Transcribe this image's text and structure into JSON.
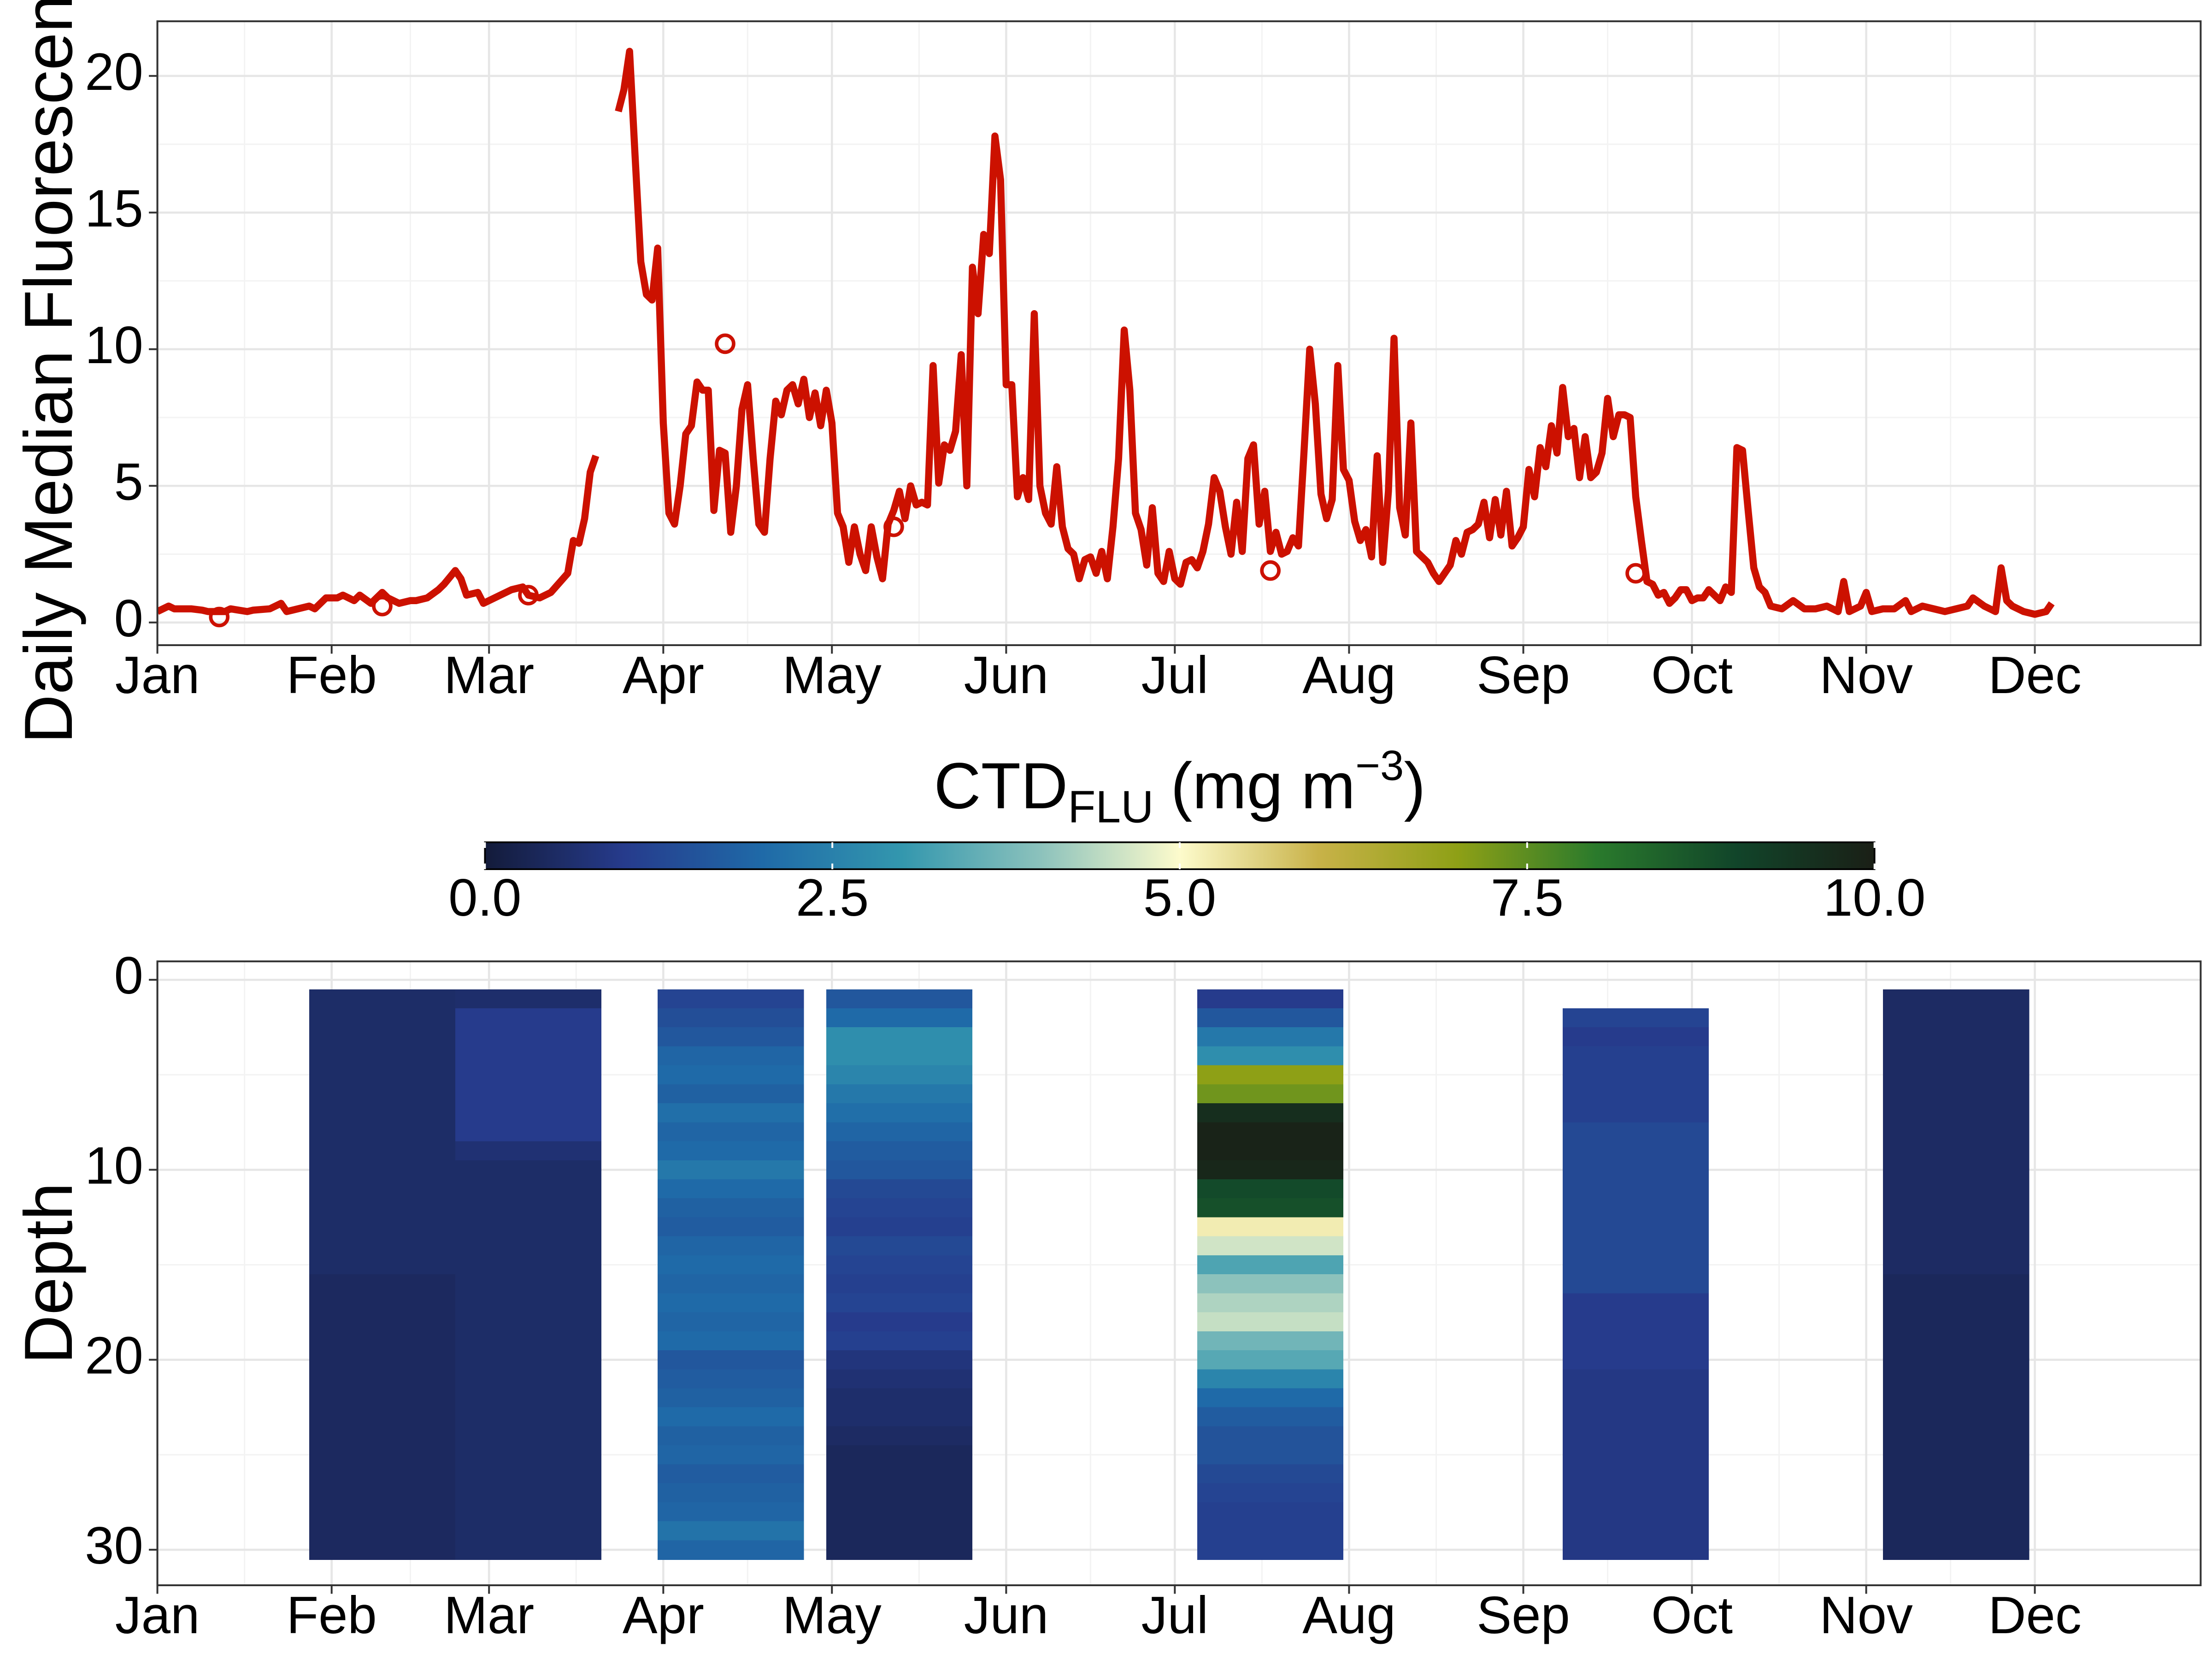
{
  "chart_data": [
    {
      "type": "line",
      "ylabel": "Daily Median Fluorescence",
      "x": [
        1,
        3,
        4,
        7,
        9,
        10,
        13,
        14,
        17,
        18,
        21,
        23,
        24,
        26,
        28,
        29,
        31,
        33,
        34,
        36,
        37,
        39,
        41,
        42,
        44,
        46,
        47,
        49,
        51,
        52,
        54,
        55,
        56,
        58,
        59,
        62,
        64,
        66,
        67,
        69,
        71,
        74,
        75,
        76,
        77,
        78,
        79,
        81,
        83,
        84,
        85,
        86,
        87,
        88,
        89,
        90,
        91,
        92,
        93,
        94,
        95,
        96,
        97,
        98,
        99,
        100,
        101,
        102,
        103,
        104,
        105,
        106,
        107,
        108,
        109,
        110,
        111,
        112,
        113,
        114,
        115,
        116,
        117,
        118,
        119,
        120,
        121,
        122,
        123,
        124,
        125,
        126,
        127,
        128,
        129,
        130,
        131,
        132,
        133,
        134,
        135,
        136,
        137,
        138,
        139,
        140,
        141,
        142,
        143,
        144,
        145,
        146,
        147,
        148,
        149,
        150,
        151,
        152,
        153,
        154,
        155,
        156,
        157,
        158,
        159,
        160,
        161,
        162,
        163,
        164,
        165,
        166,
        167,
        168,
        169,
        170,
        171,
        172,
        173,
        174,
        175,
        176,
        177,
        178,
        179,
        180,
        181,
        182,
        183,
        184,
        185,
        186,
        187,
        188,
        189,
        190,
        191,
        192,
        193,
        194,
        195,
        196,
        197,
        198,
        199,
        200,
        201,
        202,
        203,
        204,
        205,
        206,
        207,
        208,
        209,
        210,
        211,
        212,
        213,
        214,
        215,
        216,
        217,
        218,
        219,
        220,
        221,
        222,
        223,
        224,
        225,
        226,
        227,
        228,
        229,
        230,
        231,
        232,
        233,
        234,
        235,
        236,
        237,
        238,
        239,
        240,
        241,
        242,
        243,
        244,
        245,
        246,
        247,
        248,
        249,
        250,
        251,
        252,
        253,
        254,
        255,
        256,
        257,
        258,
        259,
        260,
        261,
        262,
        263,
        264,
        265,
        266,
        267,
        268,
        269,
        270,
        271,
        272,
        273,
        274,
        275,
        276,
        277,
        279,
        280,
        281,
        282,
        283,
        284,
        285,
        286,
        287,
        288,
        290,
        292,
        294,
        296,
        298,
        300,
        301,
        302,
        304,
        305,
        306,
        308,
        310,
        312,
        313,
        315,
        317,
        319,
        321,
        323,
        324,
        326,
        328,
        329,
        330,
        331,
        333,
        335,
        337,
        338
      ],
      "series": [
        {
          "color": "#cc1100",
          "values": [
            0.4,
            0.6,
            0.5,
            0.5,
            0.45,
            0.4,
            0.4,
            0.5,
            0.4,
            0.45,
            0.5,
            0.7,
            0.4,
            0.5,
            0.6,
            0.5,
            0.9,
            0.9,
            1.0,
            0.8,
            1.0,
            0.7,
            1.1,
            0.9,
            0.7,
            0.8,
            0.8,
            0.9,
            1.2,
            1.4,
            1.9,
            1.6,
            1.0,
            1.1,
            0.7,
            1.0,
            1.2,
            1.3,
            1.0,
            0.9,
            1.1,
            1.8,
            3.0,
            2.9,
            3.8,
            5.5,
            6.1,
            null,
            18.7,
            19.5,
            20.9,
            17,
            13.2,
            12,
            11.8,
            13.7,
            7.3,
            4,
            3.6,
            5,
            6.9,
            7.2,
            8.8,
            8.5,
            8.5,
            4.1,
            6.3,
            6.2,
            3.3,
            5,
            7.8,
            8.7,
            6,
            3.6,
            3.3,
            6,
            8.1,
            7.6,
            8.5,
            8.7,
            8,
            8.9,
            7.5,
            8.4,
            7.2,
            8.5,
            7.3,
            4,
            3.5,
            2.2,
            3.5,
            2.5,
            1.9,
            3.5,
            2.4,
            1.6,
            3.6,
            4.1,
            4.8,
            3.8,
            5,
            4.3,
            4.4,
            4.3,
            9.4,
            5.1,
            6.5,
            6.3,
            7,
            9.8,
            5,
            13,
            11.3,
            14.2,
            13.5,
            17.8,
            16.2,
            8.7,
            8.7,
            4.6,
            5.3,
            4.5,
            11.3,
            5,
            4,
            3.6,
            5.7,
            3.5,
            2.7,
            2.5,
            1.6,
            2.3,
            2.4,
            1.8,
            2.6,
            1.6,
            3.5,
            6,
            10.7,
            8.5,
            4,
            3.4,
            2.1,
            4.2,
            1.8,
            1.5,
            2.6,
            1.6,
            1.4,
            2.2,
            2.3,
            2,
            2.6,
            3.6,
            5.3,
            4.8,
            3.5,
            2.5,
            4.4,
            2.6,
            6,
            6.5,
            3.6,
            4.8,
            2.6,
            3.3,
            2.5,
            2.6,
            3.1,
            2.8,
            6.3,
            10,
            8,
            4.7,
            3.8,
            4.5,
            9.4,
            5.6,
            5.2,
            3.7,
            3,
            3.4,
            2.4,
            6.1,
            2.2,
            4.8,
            10.4,
            4.2,
            3.2,
            7.3,
            2.6,
            2.4,
            2.2,
            1.8,
            1.5,
            1.8,
            2.1,
            3,
            2.5,
            3.3,
            3.4,
            3.6,
            4.4,
            3.1,
            4.5,
            3.2,
            4.8,
            2.8,
            3.1,
            3.5,
            5.6,
            4.6,
            6.4,
            5.7,
            7.2,
            6.2,
            8.6,
            6.8,
            7.1,
            5.3,
            6.8,
            5.3,
            5.5,
            6.2,
            8.2,
            6.8,
            7.6,
            7.6,
            7.5,
            4.6,
            3.0,
            1.5,
            1.4,
            1.0,
            1.1,
            0.7,
            0.9,
            1.2,
            1.2,
            0.8,
            0.9,
            0.9,
            1.2,
            0.8,
            1.3,
            1.1,
            6.4,
            6.3,
            4.1,
            2,
            1.3,
            1.1,
            0.6,
            0.5,
            0.8,
            0.5,
            0.5,
            0.6,
            0.4,
            1.5,
            0.4,
            0.6,
            1.1,
            0.4,
            0.5,
            0.5,
            0.8,
            0.4,
            0.6,
            0.5,
            0.4,
            0.5,
            0.6,
            0.9,
            0.6,
            0.4,
            2.0,
            0.8,
            0.6,
            0.4,
            0.3,
            0.4,
            0.7
          ]
        },
        {
          "type": "scatter",
          "color": "#cc1100",
          "x": [
            12,
            41,
            67,
            102,
            132,
            199,
            264
          ],
          "values": [
            0.2,
            0.6,
            1.0,
            10.2,
            3.5,
            1.9,
            1.8
          ]
        }
      ],
      "xlim": [
        1,
        364.5
      ],
      "xticks": [
        {
          "value": 1,
          "label": "Jan"
        },
        {
          "value": 32,
          "label": "Feb"
        },
        {
          "value": 60,
          "label": "Mar"
        },
        {
          "value": 91,
          "label": "Apr"
        },
        {
          "value": 121,
          "label": "May"
        },
        {
          "value": 152,
          "label": "Jun"
        },
        {
          "value": 182,
          "label": "Jul"
        },
        {
          "value": 213,
          "label": "Aug"
        },
        {
          "value": 244,
          "label": "Sep"
        },
        {
          "value": 274,
          "label": "Oct"
        },
        {
          "value": 305,
          "label": "Nov"
        },
        {
          "value": 335,
          "label": "Dec"
        }
      ],
      "ylim": [
        -0.83,
        22.0
      ],
      "yticks": [
        0,
        5,
        10,
        15,
        20
      ],
      "grid": true
    },
    {
      "type": "heatmap",
      "ylabel": "Depth",
      "x": [
        41,
        67,
        103,
        133,
        199,
        264,
        321
      ],
      "y": [
        1,
        2,
        3,
        4,
        5,
        6,
        7,
        8,
        9,
        10,
        11,
        12,
        13,
        14,
        15,
        16,
        17,
        18,
        19,
        20,
        21,
        22,
        23,
        24,
        25,
        26,
        27,
        28,
        29,
        30
      ],
      "values": [
        [
          0.55,
          0.55,
          0.55,
          0.55,
          0.55,
          0.55,
          0.55,
          0.55,
          0.55,
          0.55,
          0.55,
          0.55,
          0.55,
          0.55,
          0.55,
          0.45,
          0.45,
          0.45,
          0.45,
          0.45,
          0.45,
          0.45,
          0.45,
          0.45,
          0.45,
          0.45,
          0.45,
          0.45,
          0.45,
          0.45
        ],
        [
          0.6,
          1.0,
          1.0,
          1.0,
          1.0,
          1.0,
          1.0,
          1.0,
          0.7,
          0.55,
          0.55,
          0.55,
          0.55,
          0.55,
          0.55,
          0.55,
          0.55,
          0.55,
          0.55,
          0.55,
          0.55,
          0.55,
          0.55,
          0.55,
          0.55,
          0.55,
          0.55,
          0.55,
          0.55,
          0.55
        ],
        [
          1.2,
          1.4,
          1.6,
          1.9,
          2.0,
          1.8,
          2.1,
          1.9,
          2.0,
          2.3,
          2.0,
          1.8,
          1.7,
          1.9,
          2.0,
          1.9,
          2.0,
          1.9,
          2.0,
          1.6,
          1.7,
          1.8,
          2.0,
          1.8,
          1.9,
          1.7,
          1.8,
          1.9,
          2.2,
          1.9
        ],
        [
          1.6,
          2.0,
          2.8,
          2.8,
          2.6,
          2.3,
          2.1,
          1.9,
          1.7,
          1.6,
          1.3,
          1.2,
          1.1,
          1.3,
          1.2,
          1.1,
          1.2,
          1.0,
          1.1,
          0.8,
          0.7,
          0.6,
          0.6,
          0.5,
          0.4,
          0.4,
          0.4,
          0.4,
          0.4,
          0.4
        ],
        [
          1.0,
          1.6,
          2.3,
          2.8,
          7.0,
          7.3,
          9.6,
          9.9,
          9.9,
          9.8,
          8.9,
          8.8,
          5.2,
          4.6,
          3.3,
          4.0,
          4.3,
          4.5,
          3.7,
          3.4,
          2.6,
          2.0,
          1.7,
          1.5,
          1.5,
          1.3,
          1.2,
          1.1,
          1.1,
          1.1
        ],
        [
          null,
          1.2,
          1.0,
          1.1,
          1.1,
          1.1,
          1.1,
          1.3,
          1.3,
          1.3,
          1.3,
          1.3,
          1.3,
          1.3,
          1.3,
          1.3,
          1.0,
          1.0,
          1.0,
          1.0,
          0.9,
          0.9,
          0.9,
          0.9,
          0.9,
          0.9,
          0.9,
          0.9,
          0.9,
          0.9
        ],
        [
          0.5,
          0.5,
          0.5,
          0.5,
          0.5,
          0.5,
          0.5,
          0.5,
          0.5,
          0.5,
          0.5,
          0.5,
          0.5,
          0.5,
          0.5,
          0.4,
          0.4,
          0.4,
          0.4,
          0.4,
          0.4,
          0.4,
          0.4,
          0.4,
          0.4,
          0.4,
          0.4,
          0.4,
          0.4,
          0.4
        ]
      ],
      "xlim": [
        1,
        364.5
      ],
      "xticks": [
        {
          "value": 1,
          "label": "Jan"
        },
        {
          "value": 32,
          "label": "Feb"
        },
        {
          "value": 60,
          "label": "Mar"
        },
        {
          "value": 91,
          "label": "Apr"
        },
        {
          "value": 121,
          "label": "May"
        },
        {
          "value": 152,
          "label": "Jun"
        },
        {
          "value": 182,
          "label": "Jul"
        },
        {
          "value": 213,
          "label": "Aug"
        },
        {
          "value": 244,
          "label": "Sep"
        },
        {
          "value": 274,
          "label": "Oct"
        },
        {
          "value": 305,
          "label": "Nov"
        },
        {
          "value": 335,
          "label": "Dec"
        }
      ],
      "ylim": [
        -0.97,
        31.87
      ],
      "y_reversed": true,
      "yticks": [
        0,
        10,
        20,
        30
      ],
      "grid": true,
      "colorbar": {
        "title": "CTD",
        "subscript": "FLU",
        "unit": "(mg m",
        "superscript": "−3",
        "close": ")",
        "clim": [
          0,
          10
        ],
        "ticks": [
          {
            "value": 0,
            "label": "0.0"
          },
          2.5,
          {
            "value": 5,
            "label": "5.0"
          },
          7.5,
          {
            "value": 10,
            "label": "10.0"
          }
        ],
        "colors": [
          "#131b3a",
          "#263b8c",
          "#1f6aa8",
          "#3397ae",
          "#8cc2bc",
          "#fdfbcc",
          "#c8b248",
          "#8ea016",
          "#2a7a2c",
          "#11452a",
          "#1a1f16"
        ]
      }
    }
  ]
}
